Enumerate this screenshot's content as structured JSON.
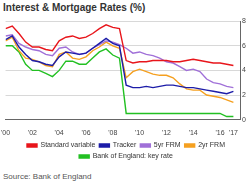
{
  "chart_data": {
    "type": "line",
    "title": "Interest & Mortgage Rates (%)",
    "source": "Source: Bank of England",
    "x": [
      2000,
      2000.5,
      2001,
      2001.5,
      2002,
      2002.5,
      2003,
      2003.5,
      2004,
      2004.5,
      2005,
      2005.5,
      2006,
      2006.5,
      2007,
      2007.5,
      2008,
      2008.5,
      2009,
      2009.5,
      2010,
      2010.5,
      2011,
      2011.5,
      2012,
      2012.5,
      2013,
      2013.5,
      2014,
      2014.5,
      2015,
      2015.5,
      2016,
      2016.5,
      2017
    ],
    "series": [
      {
        "name": "Standard variable",
        "color": "#e8151b",
        "values": [
          7.4,
          7.6,
          7.0,
          6.3,
          5.9,
          5.9,
          5.7,
          5.6,
          6.4,
          6.7,
          6.8,
          6.6,
          6.7,
          7.0,
          7.4,
          7.7,
          7.5,
          7.4,
          4.8,
          4.6,
          4.7,
          4.7,
          4.8,
          4.8,
          4.8,
          4.7,
          4.7,
          4.8,
          4.9,
          4.8,
          4.7,
          4.6,
          4.6,
          4.5,
          4.4
        ]
      },
      {
        "name": "Tracker",
        "color": "#1c1ca8",
        "values": [
          6.5,
          6.8,
          5.9,
          5.3,
          4.8,
          4.7,
          4.5,
          4.4,
          5.1,
          5.5,
          5.4,
          5.3,
          5.4,
          5.8,
          6.2,
          6.6,
          6.2,
          6.0,
          2.8,
          2.6,
          2.6,
          2.7,
          2.6,
          2.7,
          2.8,
          2.8,
          2.7,
          2.6,
          2.6,
          2.5,
          2.4,
          2.3,
          2.2,
          2.1,
          2.3
        ]
      },
      {
        "name": "5yr FRM",
        "color": "#a070d8",
        "values": [
          6.8,
          6.9,
          6.2,
          5.9,
          5.7,
          5.6,
          5.3,
          5.2,
          5.8,
          5.9,
          5.5,
          5.3,
          5.4,
          5.8,
          6.1,
          6.4,
          6.3,
          6.1,
          5.8,
          5.4,
          5.5,
          5.3,
          5.2,
          5.0,
          4.7,
          4.6,
          4.3,
          4.0,
          4.1,
          3.9,
          3.3,
          3.0,
          2.9,
          2.7,
          2.6
        ]
      },
      {
        "name": "2yr FRM",
        "color": "#f5a020",
        "values": [
          6.4,
          6.7,
          5.6,
          5.0,
          4.9,
          4.7,
          4.4,
          4.3,
          5.3,
          5.5,
          5.0,
          4.9,
          5.1,
          5.6,
          5.9,
          6.3,
          6.0,
          5.8,
          3.4,
          3.9,
          4.1,
          3.9,
          3.7,
          3.6,
          3.6,
          3.4,
          2.9,
          2.5,
          2.4,
          2.4,
          2.0,
          1.9,
          1.8,
          1.6,
          1.4
        ]
      },
      {
        "name": "Bank of England: key rate",
        "color": "#22c022",
        "values": [
          6.0,
          6.0,
          5.5,
          4.5,
          4.0,
          4.0,
          3.75,
          3.5,
          4.0,
          4.75,
          4.75,
          4.5,
          4.5,
          5.0,
          5.5,
          5.75,
          5.25,
          5.0,
          0.5,
          0.5,
          0.5,
          0.5,
          0.5,
          0.5,
          0.5,
          0.5,
          0.5,
          0.5,
          0.5,
          0.5,
          0.5,
          0.5,
          0.5,
          0.25,
          0.25
        ]
      }
    ],
    "xlim": [
      2000,
      2017.5
    ],
    "xticks": [
      {
        "value": 2000,
        "label": "'00"
      },
      {
        "value": 2002,
        "label": "'02"
      },
      {
        "value": 2004,
        "label": "'04"
      },
      {
        "value": 2006,
        "label": "'06"
      },
      {
        "value": 2008,
        "label": "'08"
      },
      {
        "value": 2010,
        "label": "'10"
      },
      {
        "value": 2012,
        "label": "'12"
      },
      {
        "value": 2014,
        "label": "'14"
      },
      {
        "value": 2016,
        "label": "'16"
      },
      {
        "value": 2017,
        "label": "'17"
      }
    ],
    "ylim": [
      0,
      8
    ],
    "yticks": [
      0,
      2,
      4,
      6,
      8
    ],
    "grid": true,
    "legend": "bottom"
  }
}
